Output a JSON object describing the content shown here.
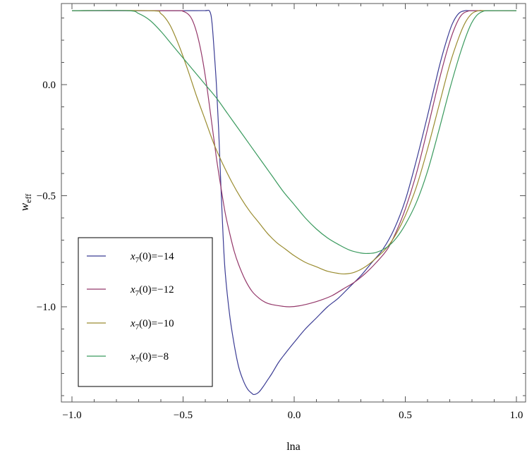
{
  "chart_data": {
    "type": "line",
    "title": "",
    "xlabel": "lna",
    "ylabel": "w_eff",
    "xlim": [
      -1.0,
      1.0
    ],
    "ylim": [
      -1.42,
      0.36
    ],
    "x_ticks": [
      -1.0,
      -0.5,
      0.0,
      0.5,
      1.0
    ],
    "x_tick_labels": [
      "−1.0",
      "−0.5",
      "0.0",
      "0.5",
      "1.0"
    ],
    "y_ticks": [
      0.0,
      -0.5,
      -1.0
    ],
    "y_tick_labels": [
      "0.0",
      "−0.5",
      "−1.0"
    ],
    "grid": false,
    "legend_position": "bottom-left",
    "series": [
      {
        "name": "x₇(0)=−14",
        "legend_label": {
          "prefix": "x",
          "sub": "7",
          "suffix": "(0)=−14"
        },
        "color": "#3b3c94",
        "points": [
          [
            -1.0,
            0.333
          ],
          [
            -0.45,
            0.333
          ],
          [
            -0.4,
            0.333
          ],
          [
            -0.38,
            0.33
          ],
          [
            -0.37,
            0.28
          ],
          [
            -0.36,
            0.15
          ],
          [
            -0.35,
            0.0
          ],
          [
            -0.34,
            -0.2
          ],
          [
            -0.33,
            -0.45
          ],
          [
            -0.32,
            -0.68
          ],
          [
            -0.31,
            -0.85
          ],
          [
            -0.29,
            -1.04
          ],
          [
            -0.27,
            -1.17
          ],
          [
            -0.25,
            -1.27
          ],
          [
            -0.23,
            -1.33
          ],
          [
            -0.21,
            -1.37
          ],
          [
            -0.19,
            -1.39
          ],
          [
            -0.18,
            -1.395
          ],
          [
            -0.16,
            -1.385
          ],
          [
            -0.14,
            -1.36
          ],
          [
            -0.12,
            -1.33
          ],
          [
            -0.1,
            -1.3
          ],
          [
            -0.07,
            -1.25
          ],
          [
            -0.04,
            -1.21
          ],
          [
            0.0,
            -1.16
          ],
          [
            0.05,
            -1.1
          ],
          [
            0.1,
            -1.05
          ],
          [
            0.15,
            -1.0
          ],
          [
            0.2,
            -0.96
          ],
          [
            0.25,
            -0.91
          ],
          [
            0.3,
            -0.86
          ],
          [
            0.35,
            -0.8
          ],
          [
            0.4,
            -0.74
          ],
          [
            0.45,
            -0.65
          ],
          [
            0.5,
            -0.52
          ],
          [
            0.55,
            -0.34
          ],
          [
            0.6,
            -0.14
          ],
          [
            0.65,
            0.07
          ],
          [
            0.68,
            0.18
          ],
          [
            0.71,
            0.27
          ],
          [
            0.74,
            0.32
          ],
          [
            0.77,
            0.333
          ],
          [
            0.8,
            0.333
          ],
          [
            1.0,
            0.333
          ]
        ]
      },
      {
        "name": "x₇(0)=−12",
        "legend_label": {
          "prefix": "x",
          "sub": "7",
          "suffix": "(0)=−12"
        },
        "color": "#94386a",
        "points": [
          [
            -1.0,
            0.333
          ],
          [
            -0.55,
            0.333
          ],
          [
            -0.5,
            0.33
          ],
          [
            -0.47,
            0.31
          ],
          [
            -0.45,
            0.27
          ],
          [
            -0.43,
            0.2
          ],
          [
            -0.41,
            0.1
          ],
          [
            -0.39,
            -0.03
          ],
          [
            -0.37,
            -0.18
          ],
          [
            -0.35,
            -0.33
          ],
          [
            -0.33,
            -0.46
          ],
          [
            -0.31,
            -0.58
          ],
          [
            -0.29,
            -0.67
          ],
          [
            -0.27,
            -0.75
          ],
          [
            -0.25,
            -0.81
          ],
          [
            -0.22,
            -0.88
          ],
          [
            -0.19,
            -0.93
          ],
          [
            -0.16,
            -0.96
          ],
          [
            -0.13,
            -0.98
          ],
          [
            -0.1,
            -0.99
          ],
          [
            -0.05,
            -0.998
          ],
          [
            -0.02,
            -1.0
          ],
          [
            0.02,
            -0.996
          ],
          [
            0.07,
            -0.985
          ],
          [
            0.12,
            -0.97
          ],
          [
            0.17,
            -0.95
          ],
          [
            0.22,
            -0.92
          ],
          [
            0.27,
            -0.89
          ],
          [
            0.32,
            -0.85
          ],
          [
            0.37,
            -0.8
          ],
          [
            0.42,
            -0.74
          ],
          [
            0.46,
            -0.66
          ],
          [
            0.5,
            -0.56
          ],
          [
            0.55,
            -0.4
          ],
          [
            0.6,
            -0.2
          ],
          [
            0.65,
            0.01
          ],
          [
            0.69,
            0.16
          ],
          [
            0.72,
            0.25
          ],
          [
            0.75,
            0.31
          ],
          [
            0.78,
            0.33
          ],
          [
            0.82,
            0.333
          ],
          [
            1.0,
            0.333
          ]
        ]
      },
      {
        "name": "x₇(0)=−10",
        "legend_label": {
          "prefix": "x",
          "sub": "7",
          "suffix": "(0)=−10"
        },
        "color": "#9a8c30",
        "points": [
          [
            -1.0,
            0.333
          ],
          [
            -0.65,
            0.333
          ],
          [
            -0.6,
            0.32
          ],
          [
            -0.56,
            0.27
          ],
          [
            -0.52,
            0.18
          ],
          [
            -0.48,
            0.07
          ],
          [
            -0.44,
            -0.05
          ],
          [
            -0.4,
            -0.16
          ],
          [
            -0.36,
            -0.27
          ],
          [
            -0.32,
            -0.36
          ],
          [
            -0.28,
            -0.44
          ],
          [
            -0.24,
            -0.51
          ],
          [
            -0.2,
            -0.57
          ],
          [
            -0.16,
            -0.62
          ],
          [
            -0.12,
            -0.67
          ],
          [
            -0.08,
            -0.71
          ],
          [
            -0.04,
            -0.74
          ],
          [
            0.0,
            -0.77
          ],
          [
            0.05,
            -0.8
          ],
          [
            0.1,
            -0.82
          ],
          [
            0.15,
            -0.84
          ],
          [
            0.2,
            -0.85
          ],
          [
            0.23,
            -0.852
          ],
          [
            0.27,
            -0.845
          ],
          [
            0.32,
            -0.82
          ],
          [
            0.37,
            -0.78
          ],
          [
            0.42,
            -0.73
          ],
          [
            0.46,
            -0.67
          ],
          [
            0.5,
            -0.59
          ],
          [
            0.55,
            -0.46
          ],
          [
            0.6,
            -0.29
          ],
          [
            0.65,
            -0.1
          ],
          [
            0.7,
            0.09
          ],
          [
            0.74,
            0.21
          ],
          [
            0.77,
            0.28
          ],
          [
            0.8,
            0.32
          ],
          [
            0.83,
            0.333
          ],
          [
            0.86,
            0.333
          ],
          [
            1.0,
            0.333
          ]
        ]
      },
      {
        "name": "x₇(0)=−8",
        "legend_label": {
          "prefix": "x",
          "sub": "7",
          "suffix": "(0)=−8"
        },
        "color": "#3a9a5e",
        "points": [
          [
            -1.0,
            0.333
          ],
          [
            -0.75,
            0.333
          ],
          [
            -0.7,
            0.32
          ],
          [
            -0.65,
            0.29
          ],
          [
            -0.6,
            0.24
          ],
          [
            -0.55,
            0.18
          ],
          [
            -0.5,
            0.12
          ],
          [
            -0.45,
            0.06
          ],
          [
            -0.4,
            0.0
          ],
          [
            -0.35,
            -0.06
          ],
          [
            -0.3,
            -0.13
          ],
          [
            -0.25,
            -0.2
          ],
          [
            -0.2,
            -0.27
          ],
          [
            -0.15,
            -0.34
          ],
          [
            -0.1,
            -0.41
          ],
          [
            -0.05,
            -0.48
          ],
          [
            0.0,
            -0.54
          ],
          [
            0.05,
            -0.6
          ],
          [
            0.1,
            -0.65
          ],
          [
            0.15,
            -0.69
          ],
          [
            0.2,
            -0.72
          ],
          [
            0.25,
            -0.745
          ],
          [
            0.3,
            -0.758
          ],
          [
            0.33,
            -0.76
          ],
          [
            0.37,
            -0.755
          ],
          [
            0.42,
            -0.73
          ],
          [
            0.46,
            -0.69
          ],
          [
            0.5,
            -0.63
          ],
          [
            0.55,
            -0.53
          ],
          [
            0.6,
            -0.39
          ],
          [
            0.65,
            -0.21
          ],
          [
            0.7,
            -0.02
          ],
          [
            0.75,
            0.15
          ],
          [
            0.79,
            0.26
          ],
          [
            0.82,
            0.31
          ],
          [
            0.85,
            0.33
          ],
          [
            0.88,
            0.333
          ],
          [
            1.0,
            0.333
          ]
        ]
      }
    ]
  }
}
